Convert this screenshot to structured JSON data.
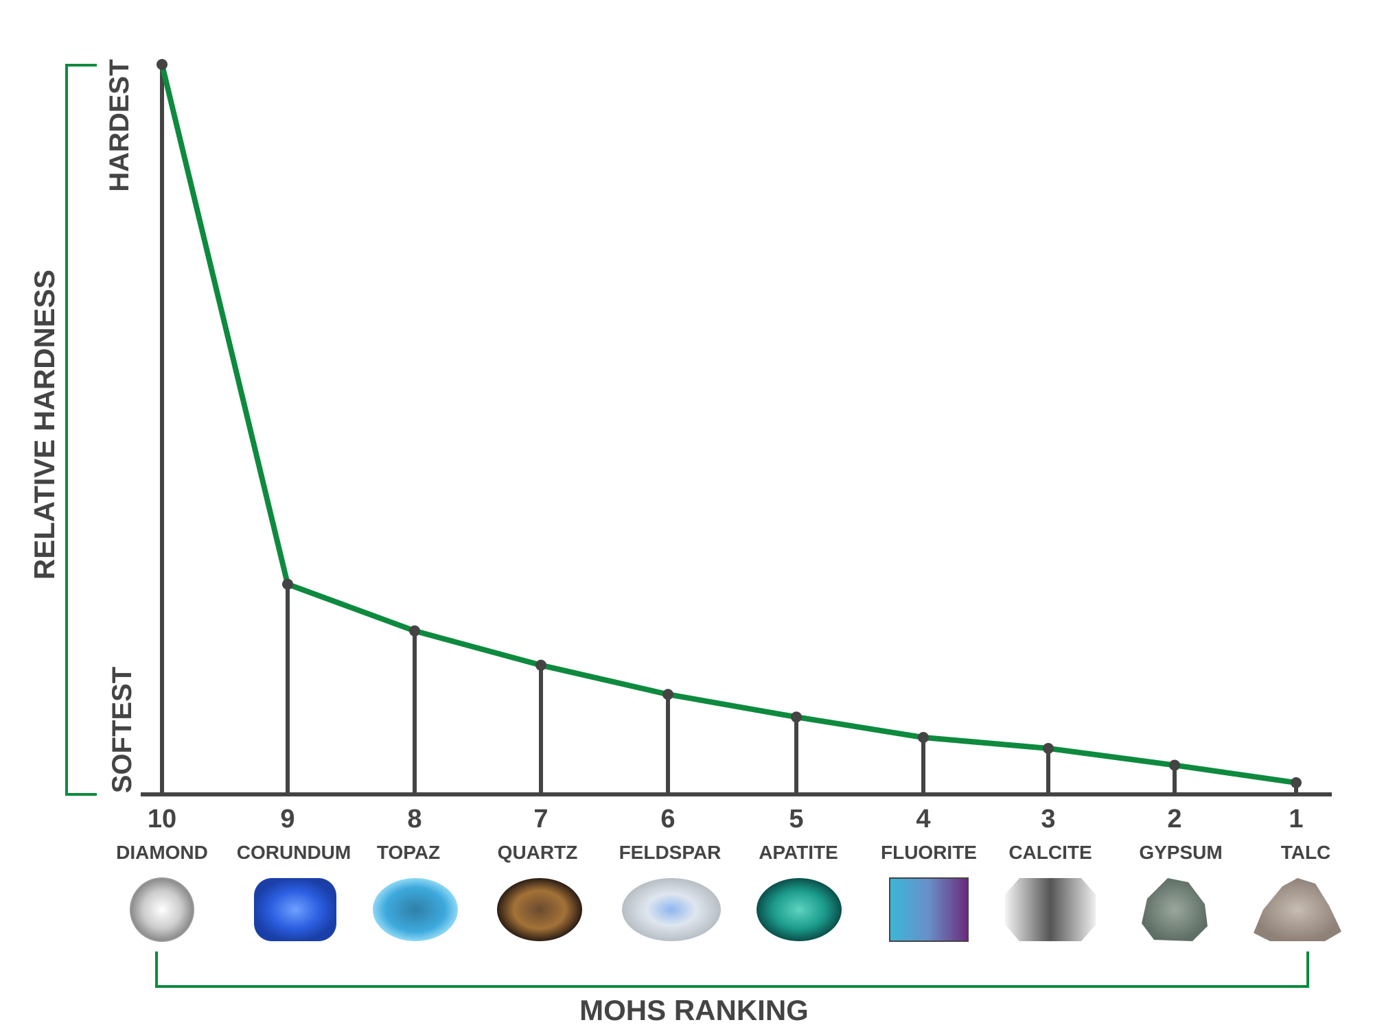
{
  "chart_data": {
    "type": "line",
    "title": "",
    "xlabel": "MOHS RANKING",
    "ylabel": "RELATIVE HARDNESS",
    "y_top_label": "HARDEST",
    "y_bottom_label": "SOFTEST",
    "x_order": "descending",
    "ylim": [
      0,
      1
    ],
    "grid": false,
    "categories": [
      "10",
      "9",
      "8",
      "7",
      "6",
      "5",
      "4",
      "3",
      "2",
      "1"
    ],
    "minerals": [
      "DIAMOND",
      "CORUNDUM",
      "TOPAZ",
      "QUARTZ",
      "FELDSPAR",
      "APATITE",
      "FLUORITE",
      "CALCITE",
      "GYPSUM",
      "TALC"
    ],
    "values": [
      1.0,
      0.288,
      0.224,
      0.177,
      0.137,
      0.106,
      0.078,
      0.063,
      0.04,
      0.016
    ],
    "gem_icons": [
      "diamond-gem",
      "sapphire-gem",
      "topaz-gem",
      "smoky-quartz-gem",
      "moonstone-gem",
      "apatite-gem",
      "fluorite-gem",
      "calcite-gem",
      "gypsum-rock",
      "talc-rock"
    ],
    "colors": {
      "line": "#0e8a3e",
      "axis": "#444444",
      "bracket": "#0e8a3e",
      "text": "#444444"
    }
  }
}
